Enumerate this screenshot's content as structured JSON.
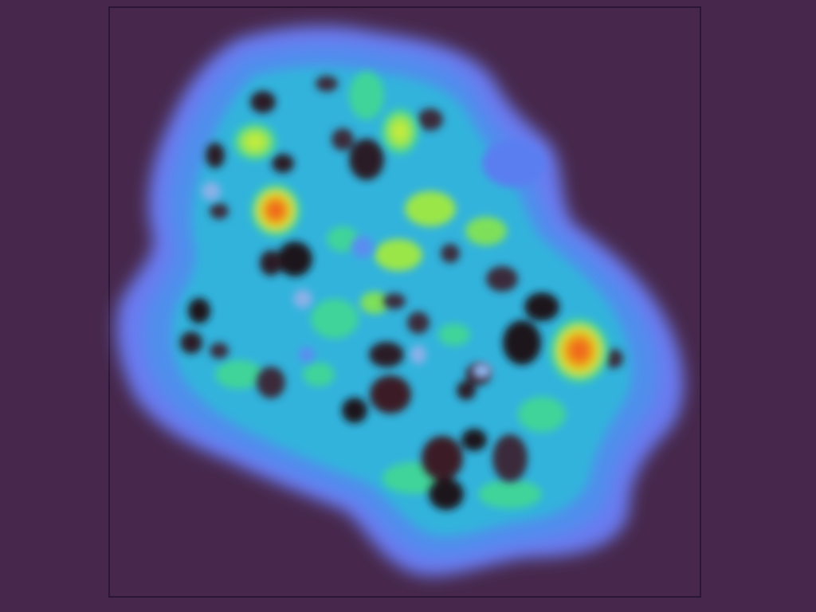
{
  "scene": {
    "description_label": "",
    "colors": {
      "background": "#47284c",
      "frame_border": "#2c1636",
      "outer_halo": "#5b7ff0",
      "mid_blue": "#4e9fe8",
      "cyan": "#2fb6d8",
      "teal_green": "#3fd49a",
      "yellow_green": "#b9e63a",
      "orange_hotspot": "#f06a1a",
      "dark_hole": "#2a1a26"
    },
    "hotspots": [
      {
        "name": "hotspot-upper-left",
        "level": "high"
      },
      {
        "name": "hotspot-right",
        "level": "high"
      },
      {
        "name": "hotspot-top-center",
        "level": "medium"
      },
      {
        "name": "hotspot-left-green",
        "level": "medium"
      }
    ]
  }
}
